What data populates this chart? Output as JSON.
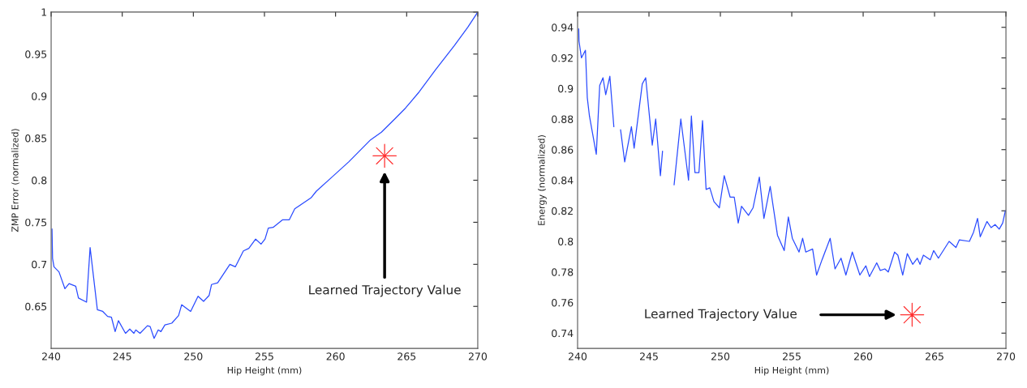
{
  "chart_data": [
    {
      "type": "line",
      "xlabel": "Hip Height (mm)",
      "ylabel": "ZMP Error (normalized)",
      "xlim": [
        240,
        270
      ],
      "ylim": [
        0.6,
        1
      ],
      "xticks": [
        240,
        245,
        250,
        255,
        260,
        265,
        270
      ],
      "yticks": [
        0.65,
        0.7,
        0.75,
        0.8,
        0.85,
        0.9,
        0.95,
        1
      ],
      "grid": false,
      "legend": false,
      "series": [
        {
          "type": "line",
          "color": "#2a4bff",
          "x": [
            240.06,
            240.1,
            240.2,
            240.55,
            240.97,
            241.26,
            241.73,
            241.92,
            242.49,
            242.74,
            243.25,
            243.63,
            243.97,
            244.24,
            244.5,
            244.73,
            245.23,
            245.53,
            245.82,
            245.95,
            246.25,
            246.77,
            246.96,
            247.24,
            247.53,
            247.72,
            248.0,
            248.48,
            248.96,
            249.18,
            249.81,
            250.33,
            250.72,
            251.11,
            251.28,
            251.71,
            252.57,
            252.95,
            253.52,
            253.9,
            254.38,
            254.76,
            255.04,
            255.27,
            255.61,
            256.28,
            256.75,
            257.13,
            258.27,
            258.65,
            259.7,
            260.94,
            262.46,
            263.22,
            264.17,
            264.93,
            265.88,
            267.02,
            268.35,
            269.3,
            270.0
          ],
          "values": [
            0.742,
            0.707,
            0.697,
            0.691,
            0.671,
            0.677,
            0.674,
            0.66,
            0.655,
            0.72,
            0.646,
            0.644,
            0.638,
            0.637,
            0.62,
            0.633,
            0.618,
            0.623,
            0.618,
            0.622,
            0.618,
            0.627,
            0.626,
            0.612,
            0.622,
            0.62,
            0.628,
            0.63,
            0.639,
            0.652,
            0.644,
            0.662,
            0.656,
            0.663,
            0.676,
            0.678,
            0.7,
            0.697,
            0.716,
            0.719,
            0.73,
            0.724,
            0.73,
            0.743,
            0.744,
            0.753,
            0.753,
            0.766,
            0.779,
            0.787,
            0.803,
            0.822,
            0.848,
            0.857,
            0.873,
            0.886,
            0.905,
            0.931,
            0.96,
            0.982,
            1.0
          ]
        },
        {
          "type": "scatter",
          "color": "#ff3030",
          "marker": "star",
          "x": [
            263.45
          ],
          "values": [
            0.829
          ]
        }
      ],
      "annotations": [
        "Learned Trajectory Value"
      ]
    },
    {
      "type": "line",
      "xlabel": "Hip Height (mm)",
      "ylabel": "Energy (normalized)",
      "xlim": [
        240,
        270
      ],
      "ylim": [
        0.73,
        0.95
      ],
      "xticks": [
        240,
        245,
        250,
        255,
        260,
        265,
        270
      ],
      "yticks": [
        0.74,
        0.76,
        0.78,
        0.8,
        0.82,
        0.84,
        0.86,
        0.88,
        0.9,
        0.92,
        0.94
      ],
      "grid": false,
      "legend": false,
      "series": [
        {
          "type": "line",
          "color": "#2a4bff",
          "x": [
            240.08,
            240.1,
            240.27,
            240.55,
            240.68,
            240.83,
            241.31,
            241.55,
            241.78,
            241.97,
            242.26,
            242.54,
            242.69,
            242.83,
            243.01,
            243.3,
            243.77,
            243.96,
            244.53,
            244.77,
            245.23,
            245.47,
            245.8,
            245.95,
            246.1,
            246.42,
            246.76,
            247.23,
            247.77,
            247.97,
            248.22,
            248.5,
            248.75,
            249.0,
            249.26,
            249.55,
            249.93,
            250.27,
            250.68,
            250.97,
            251.25,
            251.48,
            251.97,
            252.29,
            252.73,
            253.05,
            253.49,
            254.0,
            254.47,
            254.76,
            255.04,
            255.51,
            255.76,
            255.98,
            256.46,
            256.74,
            257.12,
            257.69,
            258.03,
            258.45,
            258.79,
            259.24,
            259.77,
            260.19,
            260.44,
            260.95,
            261.2,
            261.52,
            261.76,
            262.2,
            262.43,
            262.77,
            263.09,
            263.47,
            263.79,
            263.98,
            264.22,
            264.7,
            264.94,
            265.27,
            266.02,
            266.5,
            266.74,
            267.44,
            267.73,
            268.01,
            268.2,
            268.67,
            268.96,
            269.24,
            269.53,
            269.77,
            269.96
          ],
          "values": [
            0.939,
            0.931,
            0.92,
            0.925,
            0.894,
            0.882,
            0.857,
            0.902,
            0.907,
            0.896,
            0.908,
            0.875,
            null,
            null,
            0.873,
            0.852,
            0.875,
            0.861,
            0.903,
            0.907,
            0.863,
            0.88,
            0.843,
            0.859,
            null,
            null,
            0.837,
            0.88,
            0.84,
            0.882,
            0.845,
            0.845,
            0.879,
            0.834,
            0.835,
            0.826,
            0.822,
            0.843,
            0.829,
            0.829,
            0.812,
            0.823,
            0.817,
            0.822,
            0.842,
            0.815,
            0.836,
            0.804,
            0.794,
            0.816,
            0.802,
            0.793,
            0.802,
            0.793,
            0.795,
            0.778,
            0.788,
            0.802,
            0.782,
            0.789,
            0.778,
            0.793,
            0.778,
            0.784,
            0.777,
            0.786,
            0.781,
            0.782,
            0.78,
            0.793,
            0.791,
            0.778,
            0.792,
            0.785,
            0.789,
            0.785,
            0.791,
            0.788,
            0.794,
            0.789,
            0.8,
            0.796,
            0.801,
            0.8,
            0.806,
            0.815,
            0.803,
            0.813,
            0.809,
            0.811,
            0.808,
            0.812,
            0.82
          ]
        },
        {
          "type": "scatter",
          "color": "#ff3030",
          "marker": "star",
          "x": [
            263.43
          ],
          "values": [
            0.752
          ]
        }
      ],
      "annotations": [
        "Learned Trajectory Value"
      ]
    }
  ]
}
